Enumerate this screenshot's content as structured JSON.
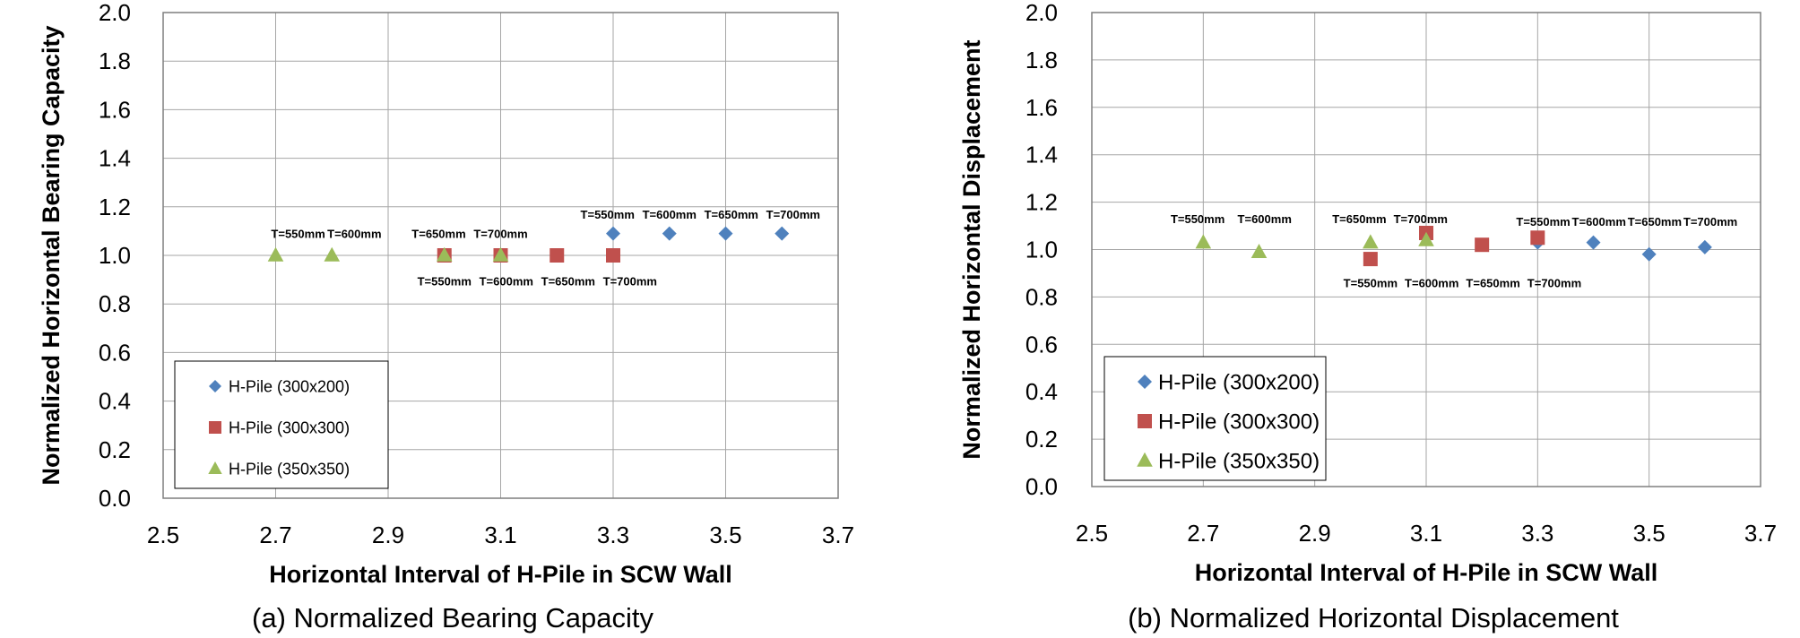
{
  "colors": {
    "series1": "#4f81bd",
    "series2": "#c0504d",
    "series3": "#9bbb59"
  },
  "chart_data": [
    {
      "type": "scatter",
      "id": "a",
      "caption": "(a) Normalized Bearing Capacity",
      "xlabel": "Horizontal Interval of H-Pile in SCW Wall",
      "ylabel": "Normalized Horizontal Bearing Capacity",
      "xlim": [
        2.5,
        3.7
      ],
      "ylim": [
        0.0,
        2.0
      ],
      "xticks": [
        "2.5",
        "2.7",
        "2.9",
        "3.1",
        "3.3",
        "3.5",
        "3.7"
      ],
      "yticks": [
        "0.0",
        "0.2",
        "0.4",
        "0.6",
        "0.8",
        "1.0",
        "1.2",
        "1.4",
        "1.6",
        "1.8",
        "2.0"
      ],
      "grid": true,
      "legend_position": "bottom-left",
      "series": [
        {
          "name": "H-Pile (300x200)",
          "marker": "diamond",
          "color": "#4f81bd",
          "x": [
            3.3,
            3.4,
            3.5,
            3.6
          ],
          "y": [
            1.09,
            1.09,
            1.09,
            1.09
          ]
        },
        {
          "name": "H-Pile (300x300)",
          "marker": "square",
          "color": "#c0504d",
          "x": [
            3.0,
            3.1,
            3.2,
            3.3
          ],
          "y": [
            1.0,
            1.0,
            1.0,
            1.0
          ]
        },
        {
          "name": "H-Pile (350x350)",
          "marker": "triangle",
          "color": "#9bbb59",
          "x": [
            2.7,
            2.8,
            3.0,
            3.1
          ],
          "y": [
            1.0,
            1.0,
            1.0,
            1.0
          ]
        }
      ],
      "annotations": [
        {
          "text": "T=550mm",
          "x": 2.74,
          "y": 1.09
        },
        {
          "text": "T=600mm",
          "x": 2.84,
          "y": 1.09
        },
        {
          "text": "T=650mm",
          "x": 2.99,
          "y": 1.09
        },
        {
          "text": "T=700mm",
          "x": 3.1,
          "y": 1.09
        },
        {
          "text": "T=550mm",
          "x": 3.29,
          "y": 1.17
        },
        {
          "text": "T=600mm",
          "x": 3.4,
          "y": 1.17
        },
        {
          "text": "T=650mm",
          "x": 3.51,
          "y": 1.17
        },
        {
          "text": "T=700mm",
          "x": 3.62,
          "y": 1.17
        },
        {
          "text": "T=550mm",
          "x": 3.0,
          "y": 0.895
        },
        {
          "text": "T=600mm",
          "x": 3.11,
          "y": 0.895
        },
        {
          "text": "T=650mm",
          "x": 3.22,
          "y": 0.895
        },
        {
          "text": "T=700mm",
          "x": 3.33,
          "y": 0.895
        }
      ]
    },
    {
      "type": "scatter",
      "id": "b",
      "caption": "(b) Normalized Horizontal Displacement",
      "xlabel": "Horizontal Interval of H-Pile in SCW Wall",
      "ylabel": "Normalized Horizontal Displacement",
      "xlim": [
        2.5,
        3.7
      ],
      "ylim": [
        0.0,
        2.0
      ],
      "xticks": [
        "2.5",
        "2.7",
        "2.9",
        "3.1",
        "3.3",
        "3.5",
        "3.7"
      ],
      "yticks": [
        "0.0",
        "0.2",
        "0.4",
        "0.6",
        "0.8",
        "1.0",
        "1.2",
        "1.4",
        "1.6",
        "1.8",
        "2.0"
      ],
      "grid": true,
      "legend_position": "bottom-left",
      "series": [
        {
          "name": "H-Pile (300x200)",
          "marker": "diamond",
          "color": "#4f81bd",
          "x": [
            3.3,
            3.4,
            3.5,
            3.6
          ],
          "y": [
            1.03,
            1.03,
            0.98,
            1.01
          ]
        },
        {
          "name": "H-Pile (300x300)",
          "marker": "square",
          "color": "#c0504d",
          "x": [
            3.0,
            3.1,
            3.2,
            3.3
          ],
          "y": [
            0.96,
            1.07,
            1.02,
            1.05
          ]
        },
        {
          "name": "H-Pile (350x350)",
          "marker": "triangle",
          "color": "#9bbb59",
          "x": [
            2.7,
            2.8,
            3.0,
            3.1
          ],
          "y": [
            1.03,
            0.99,
            1.03,
            1.04
          ]
        }
      ],
      "annotations": [
        {
          "text": "T=550mm",
          "x": 2.69,
          "y": 1.13
        },
        {
          "text": "T=600mm",
          "x": 2.81,
          "y": 1.13
        },
        {
          "text": "T=650mm",
          "x": 2.98,
          "y": 1.13
        },
        {
          "text": "T=700mm",
          "x": 3.09,
          "y": 1.13
        },
        {
          "text": "T=550mm",
          "x": 3.31,
          "y": 1.12
        },
        {
          "text": "T=600mm",
          "x": 3.41,
          "y": 1.12
        },
        {
          "text": "T=650mm",
          "x": 3.51,
          "y": 1.12
        },
        {
          "text": "T=700mm",
          "x": 3.61,
          "y": 1.12
        },
        {
          "text": "T=550mm",
          "x": 3.0,
          "y": 0.86
        },
        {
          "text": "T=600mm",
          "x": 3.11,
          "y": 0.86
        },
        {
          "text": "T=650mm",
          "x": 3.22,
          "y": 0.86
        },
        {
          "text": "T=700mm",
          "x": 3.33,
          "y": 0.86
        }
      ]
    }
  ]
}
